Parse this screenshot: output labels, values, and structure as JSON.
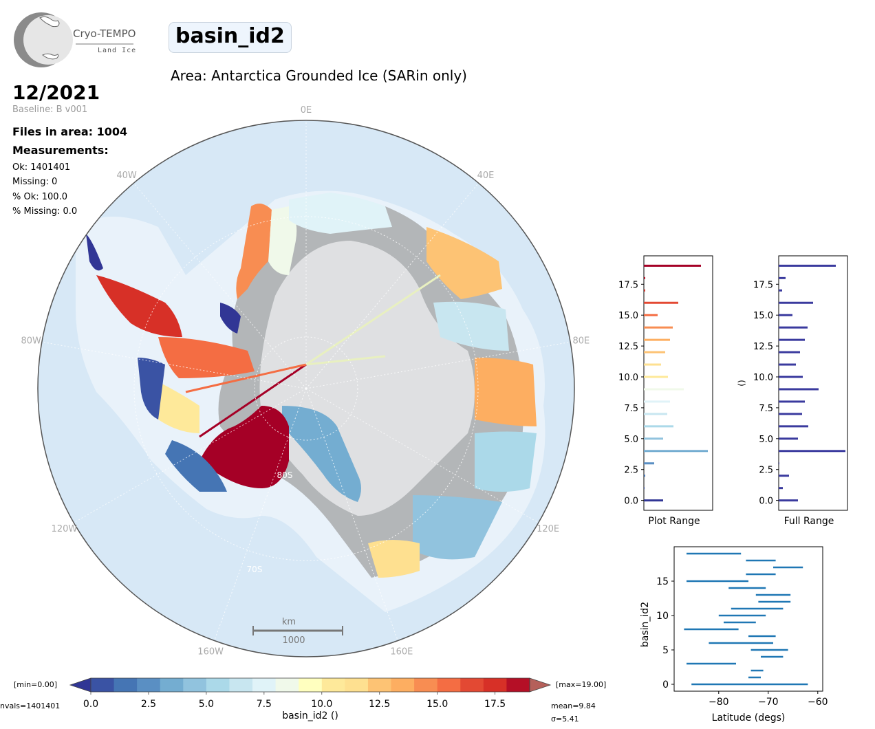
{
  "logo": {
    "name": "Cryo-TEMPO",
    "subtitle": "Land Ice"
  },
  "title": "basin_id2",
  "area": "Area: Antarctica Grounded Ice (SARin only)",
  "date": "12/2021",
  "baseline": "Baseline: B v001",
  "files_in_area": "Files in area: 1004",
  "measurements_heading": "Measurements:",
  "measurements": {
    "ok": "Ok: 1401401",
    "missing": "Missing: 0",
    "pct_ok": "% Ok: 100.0",
    "pct_missing": "% Missing: 0.0"
  },
  "map": {
    "lon_labels": [
      "0E",
      "40E",
      "80E",
      "120E",
      "160E",
      "160W",
      "120W",
      "80W",
      "40W"
    ],
    "lat_labels": [
      "80S",
      "70S"
    ],
    "scale_unit": "km",
    "scale_value": "1000",
    "colors": {
      "ocean": "#d7e8f6",
      "shelf": "#e9f2fa",
      "grounded": "#b3b6b8",
      "interior": "#dfe0e2"
    }
  },
  "colorbar": {
    "min_label": "[min=0.00]",
    "max_label": "[max=19.00]",
    "nvals_label": "nvals=1401401",
    "mean_label": "mean=9.84",
    "sigma_label": "σ=5.41",
    "label": "basin_id2 ()",
    "ticks": [
      "0.0",
      "2.5",
      "5.0",
      "7.5",
      "10.0",
      "12.5",
      "15.0",
      "17.5"
    ],
    "colors": [
      "#313695",
      "#3a53a4",
      "#4575b4",
      "#5a8fc3",
      "#74add1",
      "#91c3de",
      "#abd9e9",
      "#c8e6f0",
      "#e0f3f8",
      "#f0f9ea",
      "#ffffbf",
      "#fee99a",
      "#fee090",
      "#fdc374",
      "#fdae61",
      "#f88d52",
      "#f46d43",
      "#e34933",
      "#d73027",
      "#b50f26",
      "#a50026"
    ]
  },
  "chart_data": [
    {
      "type": "bar",
      "orientation": "horizontal",
      "title": "",
      "xlabel": "Plot Range",
      "ylabel": "",
      "yticks": [
        "0.0",
        "2.5",
        "5.0",
        "7.5",
        "10.0",
        "12.5",
        "15.0",
        "17.5"
      ],
      "categories": [
        0,
        1,
        2,
        3,
        4,
        5,
        6,
        7,
        8,
        9,
        10,
        11,
        12,
        13,
        14,
        15,
        16,
        17,
        18,
        19
      ],
      "values": [
        28,
        1,
        2,
        15,
        93,
        28,
        43,
        34,
        38,
        58,
        35,
        25,
        31,
        38,
        42,
        20,
        50,
        2,
        2,
        83
      ],
      "xlim": [
        0,
        100
      ]
    },
    {
      "type": "bar",
      "orientation": "horizontal",
      "title": "",
      "xlabel": "Full Range",
      "ylabel": "()",
      "yticks": [
        "0.0",
        "2.5",
        "5.0",
        "7.5",
        "10.0",
        "12.5",
        "15.0",
        "17.5"
      ],
      "categories": [
        0,
        1,
        2,
        3,
        4,
        5,
        6,
        7,
        8,
        9,
        10,
        11,
        12,
        13,
        14,
        15,
        16,
        17,
        18,
        19
      ],
      "values": [
        28,
        6,
        15,
        1,
        97,
        28,
        43,
        34,
        38,
        58,
        35,
        25,
        31,
        38,
        42,
        20,
        50,
        5,
        10,
        83
      ],
      "xlim": [
        0,
        100
      ],
      "color": "#3a3a9e"
    },
    {
      "type": "line",
      "title": "",
      "xlabel": "Latitude (degs)",
      "ylabel": "basin_id2",
      "xticks": [
        "−80",
        "−70",
        "−60"
      ],
      "yticks": [
        "0",
        "5",
        "10",
        "15"
      ],
      "xlim": [
        -89,
        -59
      ],
      "ylim": [
        -1,
        20
      ],
      "color": "#1f77b4",
      "series": [
        {
          "y": 0,
          "x": [
            -85.5,
            -62.0
          ]
        },
        {
          "y": 1,
          "x": [
            -74.0,
            -71.5
          ]
        },
        {
          "y": 2,
          "x": [
            -73.5,
            -71.0
          ]
        },
        {
          "y": 3,
          "x": [
            -86.5,
            -76.5
          ]
        },
        {
          "y": 4,
          "x": [
            -71.5,
            -67.0
          ]
        },
        {
          "y": 5,
          "x": [
            -73.5,
            -66.0
          ]
        },
        {
          "y": 6,
          "x": [
            -82.0,
            -69.0
          ]
        },
        {
          "y": 7,
          "x": [
            -74.0,
            -68.5
          ]
        },
        {
          "y": 8,
          "x": [
            -87.0,
            -76.0
          ]
        },
        {
          "y": 9,
          "x": [
            -79.0,
            -72.5
          ]
        },
        {
          "y": 10,
          "x": [
            -80.0,
            -70.5
          ]
        },
        {
          "y": 11,
          "x": [
            -77.5,
            -67.0
          ]
        },
        {
          "y": 12,
          "x": [
            -72.0,
            -65.5
          ]
        },
        {
          "y": 13,
          "x": [
            -72.5,
            -65.5
          ]
        },
        {
          "y": 14,
          "x": [
            -78.0,
            -70.5
          ]
        },
        {
          "y": 15,
          "x": [
            -86.5,
            -74.0
          ]
        },
        {
          "y": 16,
          "x": [
            -74.5,
            -68.5
          ]
        },
        {
          "y": 17,
          "x": [
            -69.0,
            -63.0
          ]
        },
        {
          "y": 18,
          "x": [
            -74.5,
            -68.5
          ]
        },
        {
          "y": 19,
          "x": [
            -86.5,
            -75.5
          ]
        }
      ]
    }
  ]
}
